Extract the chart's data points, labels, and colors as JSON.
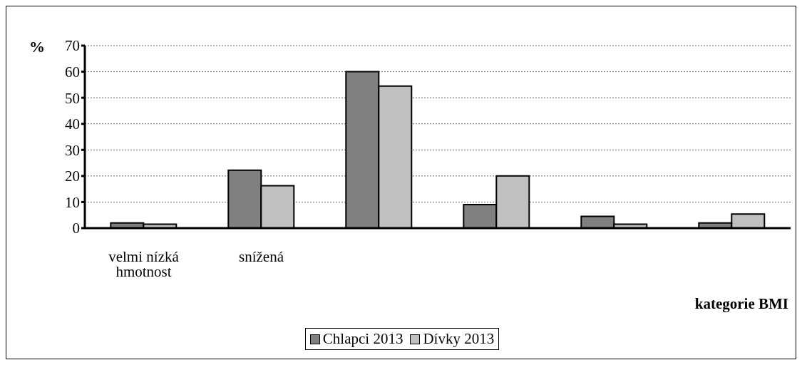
{
  "chart_data": {
    "type": "bar",
    "ylabel": "%",
    "xlabel": "kategorie BMI",
    "categories": [
      "velmi nízká hmotnost",
      "snížená",
      null,
      null,
      null,
      null
    ],
    "series": [
      {
        "name": "Chlapci 2013",
        "color": "#808080",
        "values": [
          2,
          22.2,
          60,
          9,
          4.5,
          2
        ]
      },
      {
        "name": "Dívky 2013",
        "color": "#c0c0c0",
        "values": [
          1.5,
          16.3,
          54.5,
          20,
          1.5,
          5.4
        ]
      }
    ],
    "ylim": [
      0,
      70
    ],
    "yticks": [
      0,
      10,
      20,
      30,
      40,
      50,
      60,
      70
    ],
    "grid": "y",
    "legend": "bottom"
  }
}
